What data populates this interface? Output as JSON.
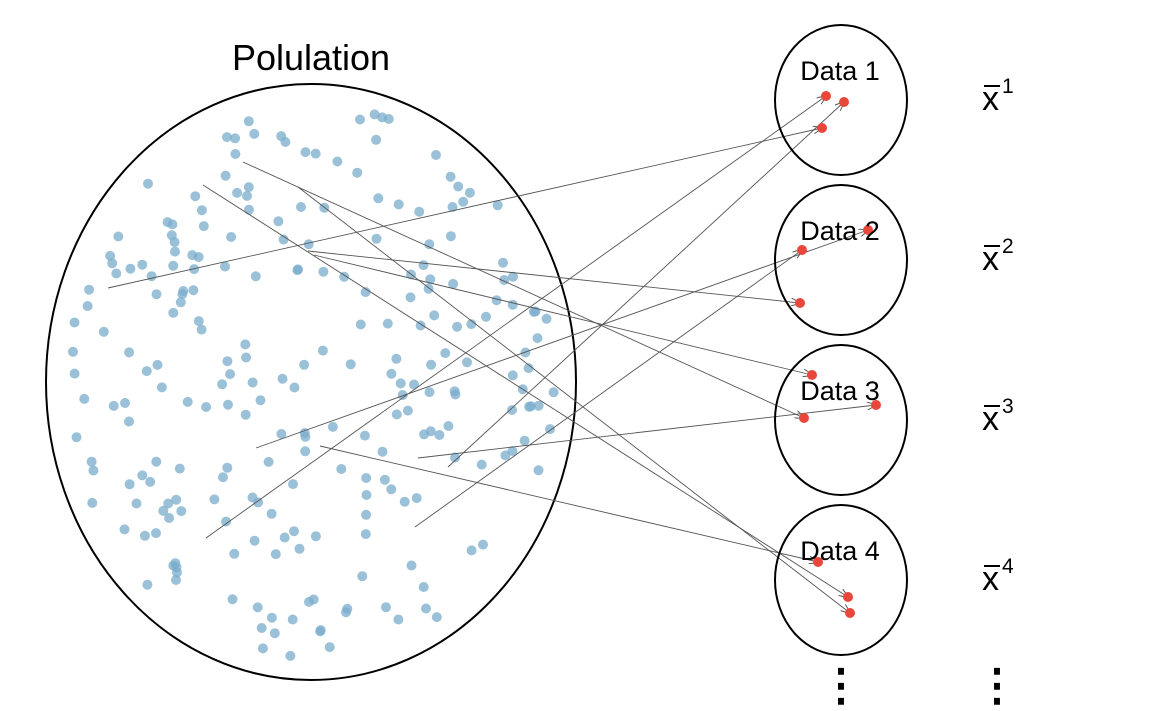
{
  "population": {
    "title": "Polulation",
    "point_color": "#7aaccc",
    "point_count": 240
  },
  "samples": [
    {
      "label": "Data 1",
      "stat_symbol": "x",
      "stat_superscript": "1"
    },
    {
      "label": "Data 2",
      "stat_symbol": "x",
      "stat_superscript": "2"
    },
    {
      "label": "Data 3",
      "stat_symbol": "x",
      "stat_superscript": "3"
    },
    {
      "label": "Data 4",
      "stat_symbol": "x",
      "stat_superscript": "4"
    }
  ],
  "continuation_marks": [
    "⋮",
    "⋮"
  ],
  "sample_point_color": "#e8473c",
  "arrow_color": "#555555"
}
